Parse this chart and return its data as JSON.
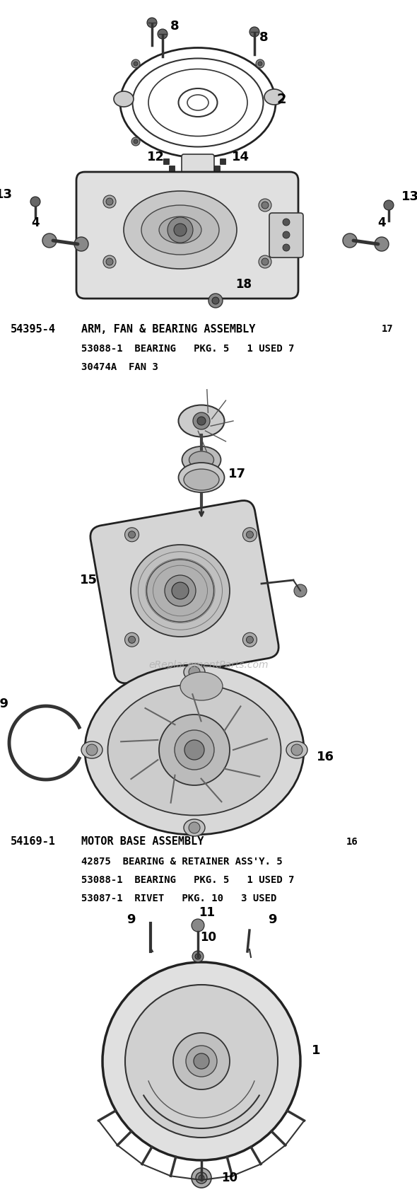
{
  "bg": "#ffffff",
  "watermark": "eReplacementParts.com",
  "text1_partnum": "54395-4",
  "text1_name": "ARM, FAN & BEARING ASSEMBLY",
  "text1_num": "17",
  "text1_sub1": "53088-1  BEARING   PKG. 5   1 USED 7",
  "text1_sub2": "30474A  FAN 3",
  "text2_partnum": "54169-1",
  "text2_name": "MOTOR BASE ASSEMBLY",
  "text2_num": "16",
  "text2_sub1": "42875  BEARING & RETAINER ASS'Y. 5",
  "text2_sub2": "53088-1  BEARING   PKG. 5   1 USED 7",
  "text2_sub3": "53087-1  RIVET   PKG. 10   3 USED",
  "fig_width": 5.9,
  "fig_height": 16.92,
  "dpi": 100
}
